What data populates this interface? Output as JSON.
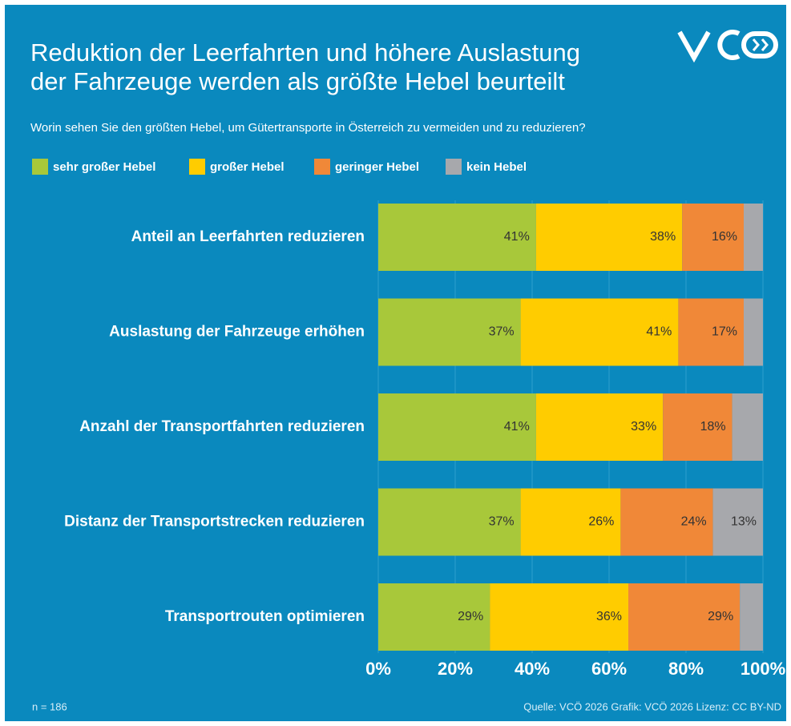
{
  "chart_data": {
    "type": "stacked_barh",
    "title": [
      "Reduktion der Leerfahrten und höhere Auslastung",
      "der Fahrzeuge werden als größte Hebel beurteilt"
    ],
    "subtitle": "Worin sehen Sie den größten Hebel, um Gütertransporte in Österreich zu vermeiden und zu reduzieren?",
    "categories": [
      "Anteil an Leerfahrten reduzieren",
      "Auslastung der Fahrzeuge erhöhen",
      "Anzahl der Transportfahrten reduzieren",
      "Distanz der Transportstrecken reduzieren",
      "Transportrouten optimieren"
    ],
    "series": [
      {
        "name": "sehr großer Hebel",
        "color": "#a8c83a",
        "values": [
          41,
          37,
          41,
          37,
          29
        ],
        "value_labels": [
          "41%",
          "37%",
          "41%",
          "37%",
          "29%"
        ]
      },
      {
        "name": "großer Hebel",
        "color": "#ffcc00",
        "values": [
          38,
          41,
          33,
          26,
          36
        ],
        "value_labels": [
          "38%",
          "41%",
          "33%",
          "26%",
          "36%"
        ]
      },
      {
        "name": "geringer Hebel",
        "color": "#f08838",
        "values": [
          16,
          17,
          18,
          24,
          29
        ],
        "value_labels": [
          "16%",
          "17%",
          "18%",
          "24%",
          "29%"
        ]
      },
      {
        "name": "kein Hebel",
        "color": "#a7a8ac",
        "values": [
          5,
          5,
          8,
          13,
          6
        ],
        "value_labels": [
          null,
          null,
          null,
          "13%",
          null
        ]
      }
    ],
    "xlim": [
      0,
      100
    ],
    "xticks": [
      {
        "value": 0,
        "label": "0%"
      },
      {
        "value": 20,
        "label": "20%"
      },
      {
        "value": 40,
        "label": "40%"
      },
      {
        "value": 60,
        "label": "60%"
      },
      {
        "value": 80,
        "label": "80%"
      },
      {
        "value": 100,
        "label": "100%"
      }
    ],
    "grid": true,
    "note": "n = 186",
    "source": "Quelle: VCÖ 2026 Grafik: VCÖ 2026 Lizenz: CC BY-ND"
  }
}
